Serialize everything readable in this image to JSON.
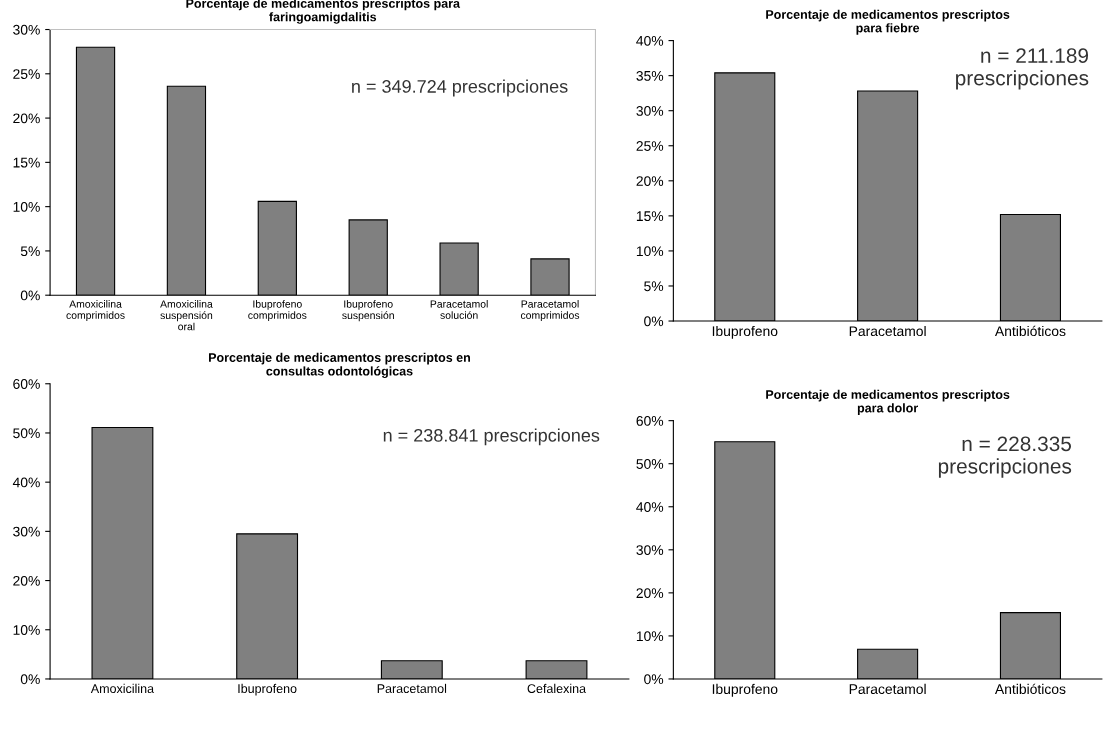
{
  "chart_data": [
    {
      "type": "bar",
      "title": "Porcentaje de medicamentos prescriptos para\nfaringoamigdalitis",
      "categories": [
        "Amoxicilina\ncomprimidos",
        "Amoxicilina\nsuspensión\noral",
        "Ibuprofeno\ncomprimidos",
        "Ibuprofeno\nsuspensión",
        "Paracetamol\nsolución",
        "Paracetamol\ncomprimidos"
      ],
      "values": [
        28.0,
        23.6,
        10.6,
        8.5,
        5.9,
        4.1
      ],
      "color": "#808080",
      "ylim": [
        0,
        30
      ],
      "yticks": [
        {
          "value": 0,
          "label": "0%"
        },
        {
          "value": 5,
          "label": "5%"
        },
        {
          "value": 10,
          "label": "10%"
        },
        {
          "value": 15,
          "label": "15%"
        },
        {
          "value": 20,
          "label": "20%"
        },
        {
          "value": 25,
          "label": "25%"
        },
        {
          "value": 30,
          "label": "30%"
        }
      ],
      "annotations": [
        "n = 349.724 prescripciones"
      ],
      "grid": false,
      "legend": false
    },
    {
      "type": "bar",
      "title": "Porcentaje de medicamentos prescriptos\npara fiebre",
      "categories": [
        "Ibuprofeno",
        "Paracetamol",
        "Antibióticos"
      ],
      "values": [
        35.4,
        32.8,
        15.2
      ],
      "color": "#808080",
      "ylim": [
        0,
        40
      ],
      "yticks": [
        {
          "value": 0,
          "label": "0%"
        },
        {
          "value": 5,
          "label": "5%"
        },
        {
          "value": 10,
          "label": "10%"
        },
        {
          "value": 15,
          "label": "15%"
        },
        {
          "value": 20,
          "label": "20%"
        },
        {
          "value": 25,
          "label": "25%"
        },
        {
          "value": 30,
          "label": "30%"
        },
        {
          "value": 35,
          "label": "35%"
        },
        {
          "value": 40,
          "label": "40%"
        }
      ],
      "annotations": [
        "n = 211.189\nprescripciones"
      ],
      "grid": false,
      "legend": false
    },
    {
      "type": "bar",
      "title": "Porcentaje de medicamentos prescriptos en\nconsultas odontológicas",
      "categories": [
        "Amoxicilina",
        "Ibuprofeno",
        "Paracetamol",
        "Cefalexina"
      ],
      "values": [
        51.1,
        29.5,
        3.7,
        3.7
      ],
      "color": "#808080",
      "ylim": [
        0,
        60
      ],
      "yticks": [
        {
          "value": 0,
          "label": "0%"
        },
        {
          "value": 10,
          "label": "10%"
        },
        {
          "value": 20,
          "label": "20%"
        },
        {
          "value": 30,
          "label": "30%"
        },
        {
          "value": 40,
          "label": "40%"
        },
        {
          "value": 50,
          "label": "50%"
        },
        {
          "value": 60,
          "label": "60%"
        }
      ],
      "annotations": [
        "n = 238.841 prescripciones"
      ],
      "grid": false,
      "legend": false
    },
    {
      "type": "bar",
      "title": "Porcentaje de medicamentos prescriptos\npara dolor",
      "categories": [
        "Ibuprofeno",
        "Paracetamol",
        "Antibióticos"
      ],
      "values": [
        55.1,
        6.9,
        15.4
      ],
      "color": "#808080",
      "ylim": [
        0,
        60
      ],
      "yticks": [
        {
          "value": 0,
          "label": "0%"
        },
        {
          "value": 10,
          "label": "10%"
        },
        {
          "value": 20,
          "label": "20%"
        },
        {
          "value": 30,
          "label": "30%"
        },
        {
          "value": 40,
          "label": "40%"
        },
        {
          "value": 50,
          "label": "50%"
        },
        {
          "value": 60,
          "label": "60%"
        }
      ],
      "annotations": [
        "n = 228.335\nprescripciones"
      ],
      "grid": false,
      "legend": false
    }
  ]
}
